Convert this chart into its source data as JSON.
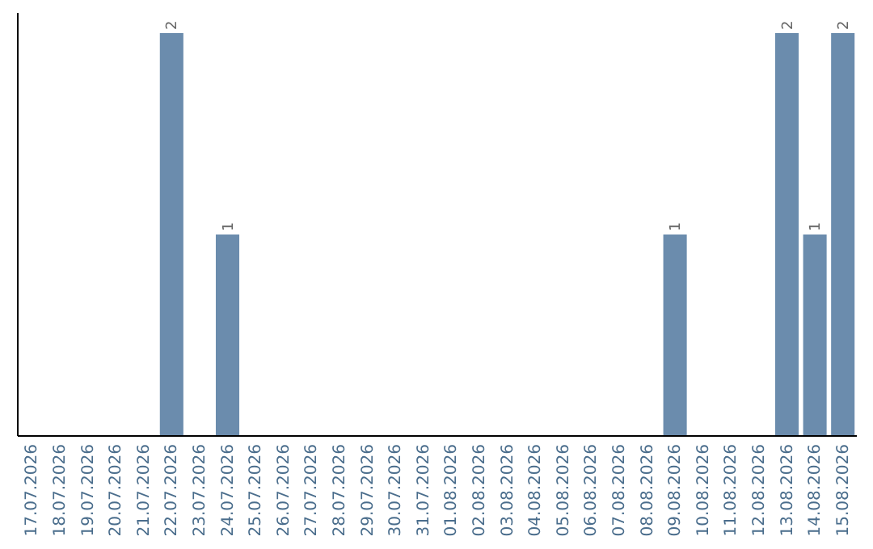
{
  "chart_data": {
    "type": "bar",
    "categories": [
      "17.07.2026",
      "18.07.2026",
      "19.07.2026",
      "20.07.2026",
      "21.07.2026",
      "22.07.2026",
      "23.07.2026",
      "24.07.2026",
      "25.07.2026",
      "26.07.2026",
      "27.07.2026",
      "28.07.2026",
      "29.07.2026",
      "30.07.2026",
      "31.07.2026",
      "01.08.2026",
      "02.08.2026",
      "03.08.2026",
      "04.08.2026",
      "05.08.2026",
      "06.08.2026",
      "07.08.2026",
      "08.08.2026",
      "09.08.2026",
      "10.08.2026",
      "11.08.2026",
      "12.08.2026",
      "13.08.2026",
      "14.08.2026",
      "15.08.2026"
    ],
    "values": [
      0,
      0,
      0,
      0,
      0,
      2,
      0,
      1,
      0,
      0,
      0,
      0,
      0,
      0,
      0,
      0,
      0,
      0,
      0,
      0,
      0,
      0,
      0,
      1,
      0,
      0,
      0,
      2,
      1,
      2
    ],
    "value_labels": [
      null,
      null,
      null,
      null,
      null,
      "2",
      null,
      "1",
      null,
      null,
      null,
      null,
      null,
      null,
      null,
      null,
      null,
      null,
      null,
      null,
      null,
      null,
      null,
      "1",
      null,
      null,
      null,
      "2",
      "1",
      "2"
    ],
    "color": "#6b8cad"
  }
}
